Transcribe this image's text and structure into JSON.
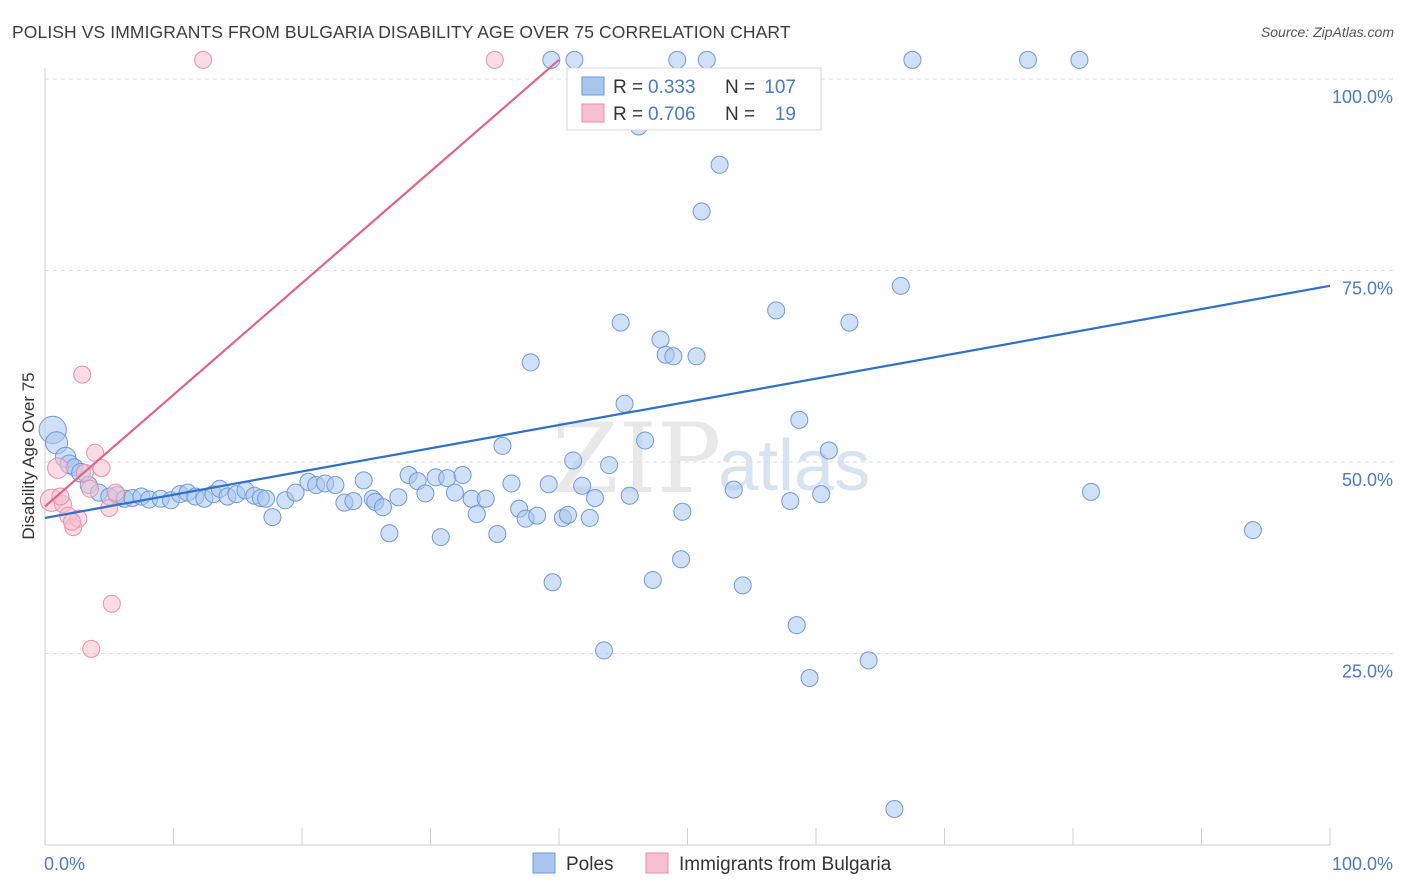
{
  "title": "POLISH VS IMMIGRANTS FROM BULGARIA DISABILITY AGE OVER 75 CORRELATION CHART",
  "source": "Source: ZipAtlas.com",
  "watermark": {
    "zip": "ZIP",
    "atlas": "atlas"
  },
  "colors": {
    "poles_fill": "#a9c6ee",
    "poles_stroke": "#6f9ad8",
    "poles_line": "#2f6fcd",
    "bulgaria_fill": "#f7c0d0",
    "bulgaria_stroke": "#ea8fad",
    "bulgaria_line": "#e0638b",
    "tick_label": "#4a7ac8",
    "grid": "#dddddd"
  },
  "stats_box": {
    "rows": [
      {
        "r_label": "R =",
        "r_value": "0.333",
        "n_label": "N =",
        "n_value": "107"
      },
      {
        "r_label": "R =",
        "r_value": "0.706",
        "n_label": "N =",
        "n_value": "19"
      }
    ]
  },
  "bottom_legend": {
    "items": [
      "Poles",
      "Immigrants from Bulgaria"
    ]
  },
  "chart_data": {
    "type": "scatter",
    "title": "POLISH VS IMMIGRANTS FROM BULGARIA DISABILITY AGE OVER 75 CORRELATION CHART",
    "xlabel": "",
    "ylabel": "Disability Age Over 75",
    "xlim": [
      0,
      100
    ],
    "ylim": [
      0,
      100
    ],
    "x_tick_labels": [
      "0.0%",
      "100.0%"
    ],
    "y_ticks": [
      25,
      50,
      75,
      100
    ],
    "y_tick_labels": [
      "25.0%",
      "50.0%",
      "75.0%",
      "100.0%"
    ],
    "grid": true,
    "legend_position": "top-center",
    "series": [
      {
        "name": "Poles",
        "r": 0.333,
        "n": 107,
        "trend": {
          "x": [
            0,
            100
          ],
          "y": [
            42.7,
            73.0
          ]
        },
        "points": [
          [
            0.6,
            54.2,
            1.6
          ],
          [
            0.9,
            52.5,
            1.3
          ],
          [
            1.6,
            50.6,
            1.2
          ],
          [
            1.9,
            49.7,
            1.1
          ],
          [
            2.3,
            49.3,
            1
          ],
          [
            2.8,
            48.6,
            1.1
          ],
          [
            3.4,
            47.0,
            1
          ],
          [
            4.2,
            46.0,
            1
          ],
          [
            5.0,
            45.5,
            1
          ],
          [
            5.6,
            45.7,
            1
          ],
          [
            6.2,
            45.2,
            1
          ],
          [
            6.8,
            45.3,
            1
          ],
          [
            7.5,
            45.5,
            1
          ],
          [
            8.1,
            45.1,
            1
          ],
          [
            9.0,
            45.2,
            1
          ],
          [
            9.8,
            45.0,
            1
          ],
          [
            10.5,
            45.8,
            1
          ],
          [
            11.1,
            46.0,
            1
          ],
          [
            11.7,
            45.5,
            1
          ],
          [
            12.4,
            45.2,
            1
          ],
          [
            13.1,
            45.8,
            1
          ],
          [
            13.6,
            46.5,
            1
          ],
          [
            14.2,
            45.5,
            1
          ],
          [
            14.9,
            45.8,
            1
          ],
          [
            15.6,
            46.3,
            1
          ],
          [
            16.3,
            45.6,
            1
          ],
          [
            16.8,
            45.3,
            1
          ],
          [
            17.2,
            45.2,
            1
          ],
          [
            17.7,
            42.8,
            1
          ],
          [
            18.7,
            45.0,
            1
          ],
          [
            19.5,
            46.0,
            1
          ],
          [
            20.5,
            47.4,
            1
          ],
          [
            21.1,
            47.0,
            1
          ],
          [
            21.8,
            47.2,
            1
          ],
          [
            22.6,
            47.0,
            1
          ],
          [
            23.3,
            44.7,
            1
          ],
          [
            24.0,
            44.9,
            1
          ],
          [
            24.8,
            47.6,
            1
          ],
          [
            25.5,
            45.2,
            1
          ],
          [
            25.7,
            44.8,
            1
          ],
          [
            26.3,
            44.1,
            1
          ],
          [
            26.8,
            40.7,
            1
          ],
          [
            27.5,
            45.4,
            1
          ],
          [
            28.3,
            48.3,
            1
          ],
          [
            29.0,
            47.5,
            1
          ],
          [
            29.6,
            45.9,
            1
          ],
          [
            30.4,
            48.0,
            1
          ],
          [
            30.8,
            40.2,
            1
          ],
          [
            31.3,
            47.9,
            1
          ],
          [
            31.9,
            46.0,
            1
          ],
          [
            32.5,
            48.3,
            1
          ],
          [
            33.2,
            45.2,
            1
          ],
          [
            33.6,
            43.2,
            1
          ],
          [
            34.3,
            45.2,
            1
          ],
          [
            35.2,
            40.6,
            1
          ],
          [
            35.6,
            52.1,
            1
          ],
          [
            36.3,
            47.2,
            1
          ],
          [
            36.9,
            43.9,
            1
          ],
          [
            37.4,
            42.6,
            1
          ],
          [
            37.8,
            63.0,
            1
          ],
          [
            38.3,
            43.0,
            1
          ],
          [
            39.2,
            47.1,
            1
          ],
          [
            39.5,
            34.3,
            1
          ],
          [
            40.3,
            42.7,
            1
          ],
          [
            40.7,
            43.1,
            1
          ],
          [
            41.1,
            50.2,
            1
          ],
          [
            41.8,
            46.9,
            1
          ],
          [
            42.4,
            42.7,
            1
          ],
          [
            42.8,
            45.3,
            1
          ],
          [
            43.5,
            25.4,
            1
          ],
          [
            43.9,
            49.6,
            1
          ],
          [
            44.8,
            68.2,
            1
          ],
          [
            45.1,
            57.6,
            1
          ],
          [
            45.5,
            45.6,
            1
          ],
          [
            46.2,
            93.8,
            1
          ],
          [
            46.7,
            52.8,
            1
          ],
          [
            47.3,
            34.6,
            1
          ],
          [
            47.9,
            66.0,
            1
          ],
          [
            48.3,
            64.0,
            1
          ],
          [
            48.9,
            63.8,
            1
          ],
          [
            49.5,
            37.3,
            1
          ],
          [
            49.6,
            43.5,
            1
          ],
          [
            50.7,
            63.8,
            1
          ],
          [
            51.1,
            82.7,
            1
          ],
          [
            52.5,
            88.8,
            1
          ],
          [
            53.6,
            46.4,
            1
          ],
          [
            54.3,
            33.9,
            1
          ],
          [
            56.9,
            69.8,
            1
          ],
          [
            58.0,
            44.9,
            1
          ],
          [
            58.5,
            28.7,
            1
          ],
          [
            58.7,
            55.5,
            1
          ],
          [
            59.5,
            21.8,
            1
          ],
          [
            60.4,
            45.8,
            1
          ],
          [
            61.0,
            51.5,
            1
          ],
          [
            62.6,
            68.2,
            1
          ],
          [
            64.1,
            24.1,
            1
          ],
          [
            66.1,
            4.7,
            1
          ],
          [
            66.6,
            73.0,
            1
          ],
          [
            81.4,
            46.1,
            1
          ],
          [
            94.0,
            41.1,
            1
          ],
          [
            39.4,
            102.5,
            1
          ],
          [
            41.2,
            102.5,
            1
          ],
          [
            49.2,
            102.5,
            1
          ],
          [
            51.5,
            102.5,
            1
          ],
          [
            67.5,
            102.5,
            1
          ],
          [
            76.5,
            102.5,
            1
          ],
          [
            80.5,
            102.5,
            1
          ]
        ]
      },
      {
        "name": "Immigrants from Bulgaria",
        "r": 0.706,
        "n": 19,
        "trend": {
          "x": [
            0,
            40.0
          ],
          "y": [
            44.2,
            102.5
          ]
        },
        "points": [
          [
            0.5,
            45.0,
            1.3
          ],
          [
            1.0,
            49.2,
            1.2
          ],
          [
            1.4,
            44.5,
            1
          ],
          [
            1.8,
            43.0,
            1
          ],
          [
            2.2,
            41.5,
            1
          ],
          [
            2.6,
            42.6,
            1
          ],
          [
            3.1,
            48.6,
            1
          ],
          [
            3.5,
            46.5,
            1
          ],
          [
            3.9,
            51.2,
            1
          ],
          [
            4.4,
            49.2,
            1
          ],
          [
            5.0,
            44.0,
            1
          ],
          [
            5.5,
            46.0,
            1
          ],
          [
            2.9,
            61.4,
            1
          ],
          [
            5.2,
            31.5,
            1
          ],
          [
            3.6,
            25.6,
            1
          ],
          [
            2.1,
            42.2,
            1
          ],
          [
            1.2,
            45.5,
            1
          ],
          [
            12.3,
            102.5,
            1
          ],
          [
            35.0,
            102.5,
            1
          ]
        ]
      }
    ]
  }
}
